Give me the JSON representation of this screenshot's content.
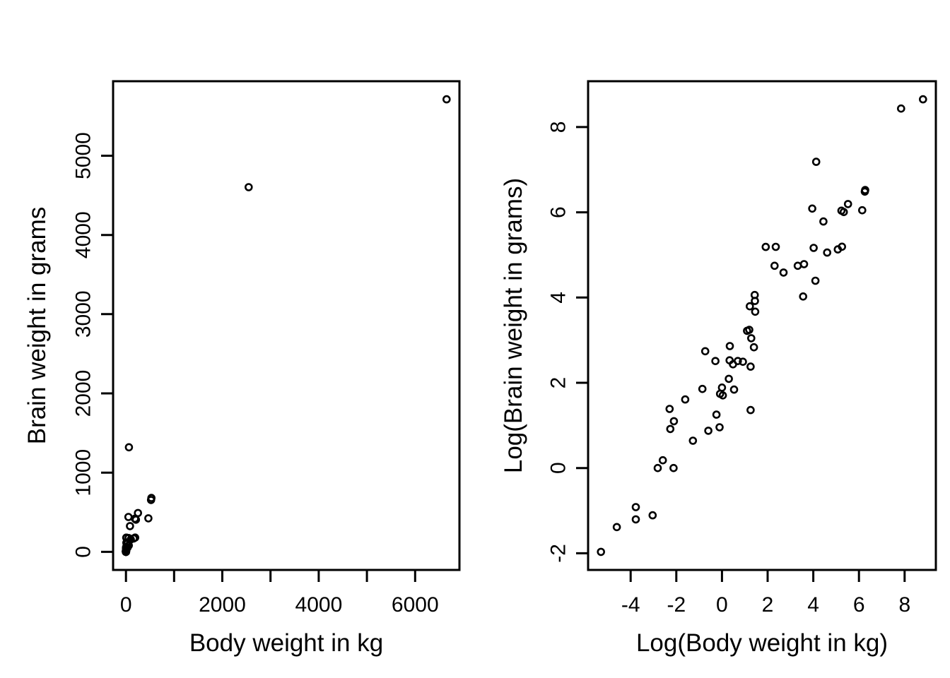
{
  "figure": {
    "background": "#ffffff",
    "foreground": "#000000",
    "marker": "open-circle"
  },
  "chart_data": [
    {
      "type": "scatter",
      "panel": "left",
      "title": "",
      "xlabel": "Body weight in kg",
      "ylabel": "Brain weight in grams",
      "xlim": [
        -266.2,
        6920.2
      ],
      "ylim": [
        -228.3,
        5940.3
      ],
      "xticks": [
        0,
        1000,
        2000,
        3000,
        4000,
        5000,
        6000
      ],
      "xtick_labels": [
        "0",
        "",
        "2000",
        "",
        "4000",
        "",
        "6000"
      ],
      "yticks": [
        0,
        1000,
        2000,
        3000,
        4000,
        5000
      ],
      "ytick_labels": [
        "0",
        "1000",
        "2000",
        "3000",
        "4000",
        "5000"
      ],
      "grid": false,
      "legend": null,
      "points": [
        [
          3.385,
          44.5
        ],
        [
          0.48,
          15.5
        ],
        [
          1.35,
          8.1
        ],
        [
          465,
          423
        ],
        [
          36.33,
          119.5
        ],
        [
          27.66,
          115
        ],
        [
          14.83,
          98.2
        ],
        [
          1.04,
          5.5
        ],
        [
          4.19,
          58
        ],
        [
          0.425,
          6.4
        ],
        [
          0.101,
          4
        ],
        [
          0.92,
          5.7
        ],
        [
          1,
          6.6
        ],
        [
          0.005,
          0.14
        ],
        [
          0.06,
          1
        ],
        [
          3.5,
          10.8
        ],
        [
          2,
          12.3
        ],
        [
          1.7,
          6.3
        ],
        [
          2547,
          4603
        ],
        [
          0.023,
          0.3
        ],
        [
          187.1,
          419
        ],
        [
          521,
          655
        ],
        [
          0.785,
          3.5
        ],
        [
          10,
          115
        ],
        [
          3.3,
          25.6
        ],
        [
          0.2,
          5
        ],
        [
          1.41,
          17.5
        ],
        [
          529,
          680
        ],
        [
          207,
          406
        ],
        [
          85,
          325
        ],
        [
          0.75,
          12.3
        ],
        [
          62,
          1320
        ],
        [
          6654,
          5712
        ],
        [
          3.5,
          3.9
        ],
        [
          6.8,
          179
        ],
        [
          35,
          56
        ],
        [
          4.05,
          17
        ],
        [
          0.12,
          1
        ],
        [
          0.023,
          0.4
        ],
        [
          0.01,
          0.25
        ],
        [
          1.4,
          12.5
        ],
        [
          250,
          490
        ],
        [
          2.5,
          12.1
        ],
        [
          55.5,
          175
        ],
        [
          100,
          157
        ],
        [
          52.16,
          440
        ],
        [
          10.55,
          179.5
        ],
        [
          0.55,
          2.4
        ],
        [
          60,
          81
        ],
        [
          3.6,
          21
        ],
        [
          4.288,
          39.2
        ],
        [
          0.28,
          1.9
        ],
        [
          0.075,
          1.2
        ],
        [
          0.122,
          3
        ],
        [
          0.048,
          0.33
        ],
        [
          192,
          180
        ],
        [
          3,
          25
        ],
        [
          160,
          169
        ],
        [
          0.9,
          2.6
        ],
        [
          1.62,
          11.4
        ],
        [
          0.104,
          2.5
        ],
        [
          4.235,
          50.4
        ]
      ]
    },
    {
      "type": "scatter",
      "panel": "right",
      "title": "",
      "xlabel": "Log(Body weight in kg)",
      "ylabel": "Log(Brain weight in grams)",
      "xlim": [
        -5.862,
        9.367
      ],
      "ylim": [
        -2.391,
        9.075
      ],
      "xticks": [
        -4,
        -2,
        0,
        2,
        4,
        6,
        8
      ],
      "xtick_labels": [
        "-4",
        "-2",
        "0",
        "2",
        "4",
        "6",
        "8"
      ],
      "yticks": [
        -2,
        0,
        2,
        4,
        6,
        8
      ],
      "ytick_labels": [
        "-2",
        "0",
        "2",
        "4",
        "6",
        "8"
      ],
      "grid": false,
      "legend": null,
      "points": [
        [
          1.219,
          3.795
        ],
        [
          -0.734,
          2.741
        ],
        [
          0.3,
          2.092
        ],
        [
          6.142,
          6.047
        ],
        [
          3.593,
          4.783
        ],
        [
          3.32,
          4.745
        ],
        [
          2.697,
          4.587
        ],
        [
          0.039,
          1.705
        ],
        [
          1.433,
          4.06
        ],
        [
          -0.856,
          1.856
        ],
        [
          -2.293,
          1.386
        ],
        [
          -0.083,
          1.741
        ],
        [
          0,
          1.887
        ],
        [
          -5.298,
          -1.966
        ],
        [
          -2.813,
          0
        ],
        [
          1.253,
          2.38
        ],
        [
          0.693,
          2.51
        ],
        [
          0.531,
          1.841
        ],
        [
          7.843,
          8.434
        ],
        [
          -3.772,
          -1.204
        ],
        [
          5.232,
          6.038
        ],
        [
          6.256,
          6.485
        ],
        [
          -0.242,
          1.253
        ],
        [
          2.303,
          4.745
        ],
        [
          1.194,
          3.243
        ],
        [
          -1.609,
          1.609
        ],
        [
          0.344,
          2.862
        ],
        [
          6.271,
          6.522
        ],
        [
          5.333,
          6.006
        ],
        [
          4.443,
          5.784
        ],
        [
          -0.288,
          2.51
        ],
        [
          4.127,
          7.185
        ],
        [
          8.803,
          8.65
        ],
        [
          1.253,
          1.361
        ],
        [
          1.917,
          5.187
        ],
        [
          3.555,
          4.025
        ],
        [
          1.399,
          2.833
        ],
        [
          -2.12,
          0
        ],
        [
          -3.772,
          -0.916
        ],
        [
          -4.605,
          -1.386
        ],
        [
          0.336,
          2.526
        ],
        [
          5.521,
          6.194
        ],
        [
          0.916,
          2.493
        ],
        [
          4.016,
          5.165
        ],
        [
          4.605,
          5.056
        ],
        [
          3.954,
          6.087
        ],
        [
          2.356,
          5.19
        ],
        [
          -0.598,
          0.875
        ],
        [
          4.094,
          4.394
        ],
        [
          1.281,
          3.045
        ],
        [
          1.456,
          3.669
        ],
        [
          -1.273,
          0.642
        ],
        [
          -2.59,
          0.182
        ],
        [
          -2.104,
          1.099
        ],
        [
          -3.037,
          -1.109
        ],
        [
          5.257,
          5.193
        ],
        [
          1.099,
          3.219
        ],
        [
          5.075,
          5.13
        ],
        [
          -0.105,
          0.956
        ],
        [
          0.482,
          2.434
        ],
        [
          -2.263,
          0.916
        ],
        [
          1.443,
          3.92
        ]
      ]
    }
  ]
}
